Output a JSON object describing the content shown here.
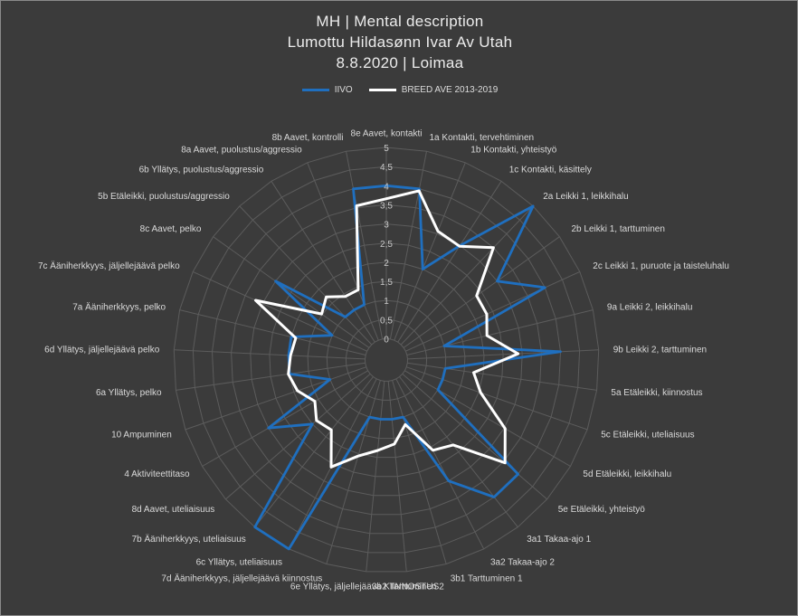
{
  "chart_data": {
    "type": "radar",
    "title_lines": [
      "MH | Mental description",
      "Lumottu Hildasønn Ivar Av Utah",
      "8.8.2020 | Loimaa"
    ],
    "categories": [
      "8e Aavet, kontakti",
      "1a Kontakti, tervehtiminen",
      "1b Kontakti, yhteistyö",
      "1c Kontakti, käsittely",
      "2a Leikki 1, leikkihalu",
      "2b Leikki 1, tarttuminen",
      "2c Leikki 1, puruote ja taisteluhalu",
      "9a Leikki 2, leikkihalu",
      "9b Leikki 2, tarttuminen",
      "5a Etäleikki, kiinnostus",
      "5c Etäleikki, uteliaisuus",
      "5d Etäleikki, leikkihalu",
      "5e Etäleikki, yhteistyö",
      "3a1 Takaa-ajo 1",
      "3a2 Takaa-ajo 2",
      "3b1 Tarttuminen 1",
      "3b2 Tarttuminen 2",
      "6e Yllätys, jäljellejäävä KIINNOSTUS",
      "7d Ääniherkkyys, jäljellejäävä kiinnostus",
      "6c Yllätys, uteliaisuus",
      "7b Ääniherkkyys, uteliaisuus",
      "8d Aavet, uteliaisuus",
      "4 Aktiviteettitaso",
      "10 Ampuminen",
      "6a Yllätys, pelko",
      "6d Yllätys, jäljellejäävä pelko",
      "7a Ääniherkkyys, pelko",
      "7c Ääniherkkyys, jäljellejäävä pelko",
      "8c Aavet, pelko",
      "5b Etäleikki, puolustus/aggressio",
      "6b Yllätys, puolustus/aggressio",
      "8a Aavet, puolustus/aggressio",
      "8b Aavet, kontrolli"
    ],
    "series": [
      {
        "name": "IIVO",
        "color": "#1f6fbf",
        "values": [
          4,
          4,
          2,
          3,
          5,
          3,
          4,
          1,
          4,
          1,
          1,
          1,
          4,
          4,
          3,
          1,
          1,
          1,
          1,
          5,
          5,
          2,
          3,
          1,
          2,
          2,
          2,
          1,
          3,
          1,
          1,
          1,
          4
        ]
      },
      {
        "name": "BREED AVE 2013-2019",
        "color": "#ffffff",
        "values": [
          3.66,
          3.95,
          3.07,
          2.98,
          3.5,
          2.34,
          2.33,
          2.15,
          2.89,
          1.75,
          2.05,
          3.03,
          3.55,
          2.27,
          2.1,
          1.2,
          1.65,
          1.82,
          2.06,
          2.59,
          1.77,
          1.86,
          1.6,
          1.9,
          2.03,
          1.95,
          1.88,
          3.2,
          1.52,
          1.72,
          1.42,
          1.42,
          3.55
        ]
      }
    ],
    "r_ticks": [
      "0",
      "0,5",
      "1",
      "1,5",
      "2",
      "2,5",
      "3",
      "3,5",
      "4",
      "4,5",
      "5"
    ],
    "r_range": [
      0,
      5
    ],
    "legend_position": "top",
    "grid": true
  }
}
